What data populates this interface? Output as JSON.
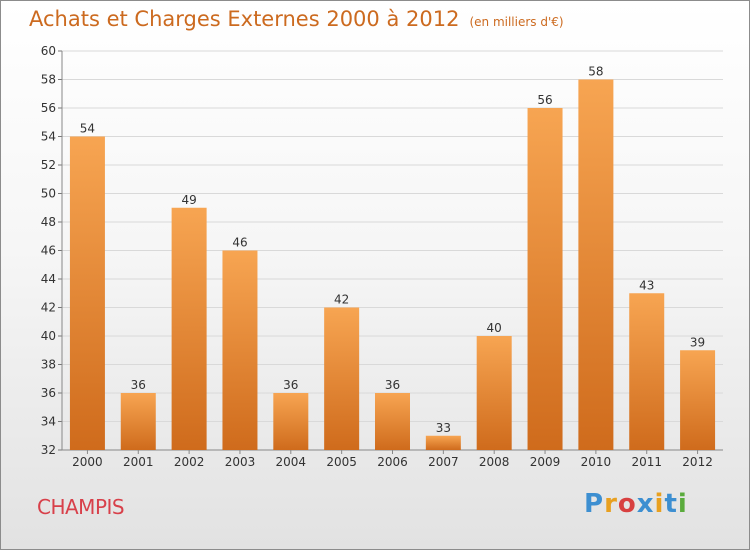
{
  "header": {
    "title": "Achats et Charges Externes 2000 à 2012",
    "unit": "(en milliers d'€)"
  },
  "footer": {
    "commune": "CHAMPIS",
    "logo": "Proxiti"
  },
  "colors": {
    "bar_light": "#f7a552",
    "bar_dark": "#cf6b1c",
    "title": "#cc6a1f",
    "commune": "#d8404a",
    "logo_letters": [
      "#3d8fd1",
      "#e8a020",
      "#d84040",
      "#3d8fd1",
      "#e8a020",
      "#3d8fd1",
      "#5aab3c"
    ]
  },
  "chart_data": {
    "type": "bar",
    "title": "Achats et Charges Externes 2000 à 2012",
    "subtitle": "(en milliers d'€)",
    "categories": [
      "2000",
      "2001",
      "2002",
      "2003",
      "2004",
      "2005",
      "2006",
      "2007",
      "2008",
      "2009",
      "2010",
      "2011",
      "2012"
    ],
    "values": [
      54,
      36,
      49,
      46,
      36,
      42,
      36,
      33,
      40,
      56,
      58,
      43,
      39
    ],
    "ylim": [
      32,
      60
    ],
    "yticks": [
      32,
      34,
      36,
      38,
      40,
      42,
      44,
      46,
      48,
      50,
      52,
      54,
      56,
      58,
      60
    ],
    "grid": true,
    "data_labels": true
  }
}
